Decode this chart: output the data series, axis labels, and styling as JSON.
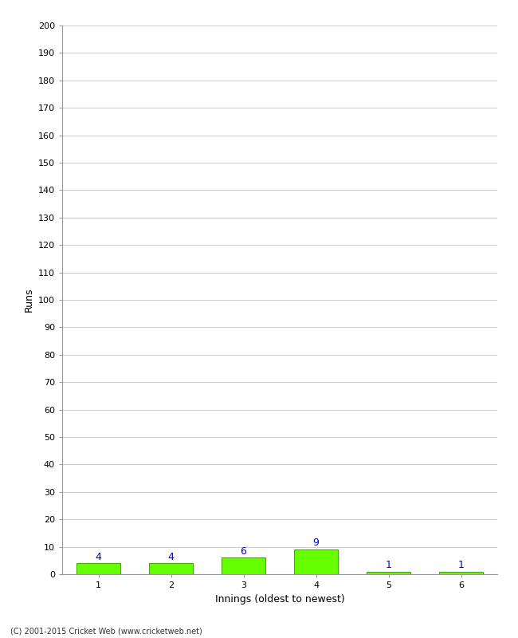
{
  "categories": [
    1,
    2,
    3,
    4,
    5,
    6
  ],
  "values": [
    4,
    4,
    6,
    9,
    1,
    1
  ],
  "bar_color": "#66ff00",
  "bar_edge_color": "#44aa00",
  "value_color": "#0000cc",
  "xlabel": "Innings (oldest to newest)",
  "ylabel": "Runs",
  "ylim": [
    0,
    200
  ],
  "ytick_step": 10,
  "footer": "(C) 2001-2015 Cricket Web (www.cricketweb.net)",
  "background_color": "#ffffff",
  "grid_color": "#cccccc",
  "tick_label_fontsize": 8,
  "axis_label_fontsize": 9,
  "footer_fontsize": 7,
  "value_label_fontsize": 9,
  "bar_width": 0.6
}
